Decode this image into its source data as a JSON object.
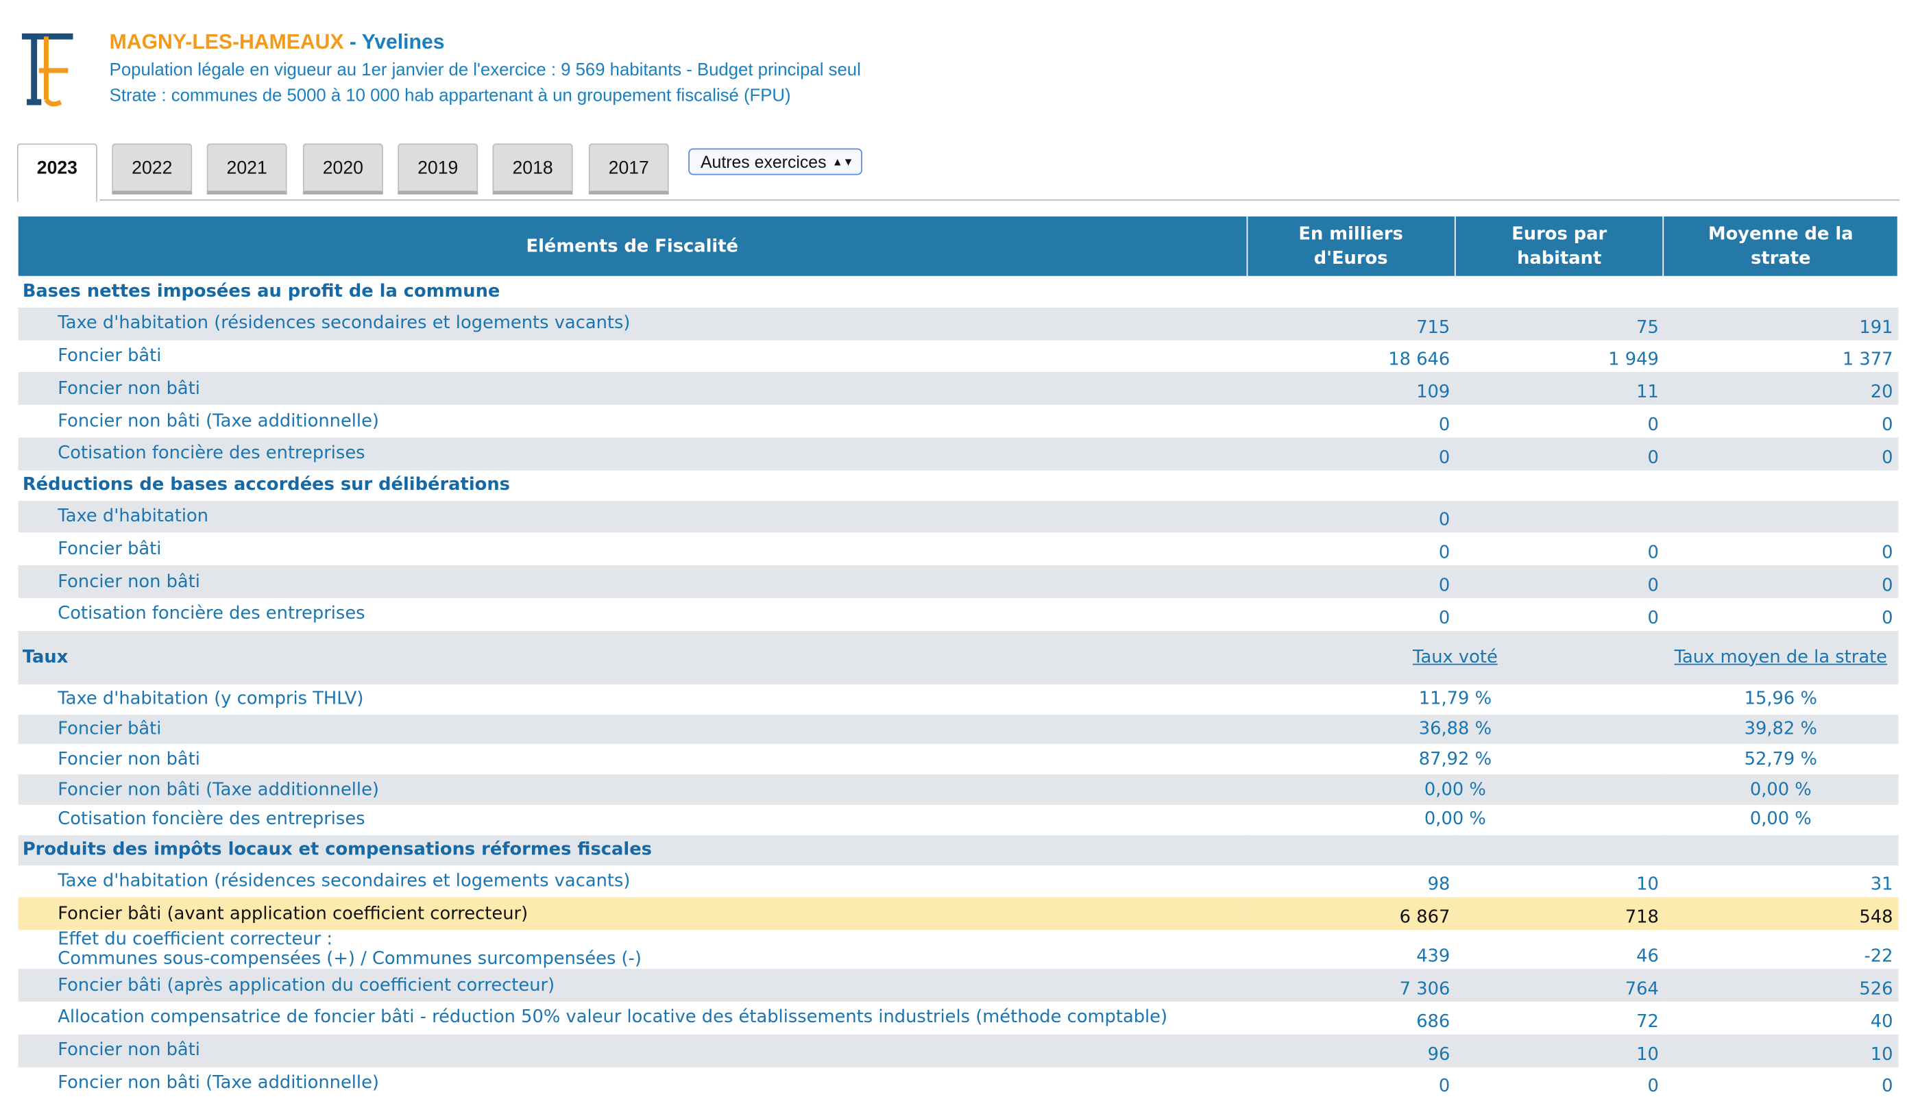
{
  "header": {
    "commune": "MAGNY-LES-HAMEAUX",
    "departement": "- Yvelines",
    "population": "Population légale en vigueur au 1er janvier de l'exercice : 9 569 habitants - Budget principal seul",
    "strate": "Strate : communes de 5000 à 10 000 hab appartenant à un groupement fiscalisé (FPU)"
  },
  "tabs": [
    "2023",
    "2022",
    "2021",
    "2020",
    "2019",
    "2018",
    "2017"
  ],
  "select": "Autres exercices",
  "table": {
    "columns": [
      "Eléments de Fiscalité",
      "En milliers d'Euros",
      "Euros par habitant",
      "Moyenne de la strate"
    ],
    "sections": [
      {
        "title": "Bases nettes imposées au profit de la commune",
        "rows": [
          {
            "label": "Taxe d'habitation (résidences secondaires et logements vacants)",
            "values": [
              "715",
              "75",
              "191"
            ]
          },
          {
            "label": "Foncier bâti",
            "values": [
              "18 646",
              "1 949",
              "1 377"
            ]
          },
          {
            "label": "Foncier non bâti",
            "values": [
              "109",
              "11",
              "20"
            ]
          },
          {
            "label": "Foncier non bâti (Taxe additionnelle)",
            "values": [
              "0",
              "0",
              "0"
            ]
          },
          {
            "label": "Cotisation foncière des entreprises",
            "values": [
              "0",
              "0",
              "0"
            ]
          }
        ]
      },
      {
        "title": "Réductions de bases accordées sur délibérations",
        "rows": [
          {
            "label": "Taxe d'habitation",
            "values": [
              "0"
            ]
          },
          {
            "label": "Foncier bâti",
            "values": [
              "0",
              "0",
              "0"
            ]
          },
          {
            "label": "Foncier non bâti",
            "values": [
              "0",
              "0",
              "0"
            ]
          },
          {
            "label": "Cotisation foncière des entreprises",
            "values": [
              "0",
              "0",
              "0"
            ]
          }
        ]
      },
      {
        "title": "Taux",
        "columns": [
          "Taux voté",
          "Taux moyen de la strate"
        ],
        "rows": [
          {
            "label": "Taxe d'habitation (y compris THLV)",
            "values": [
              "11,79 %",
              "15,96 %"
            ]
          },
          {
            "label": "Foncier bâti",
            "values": [
              "36,88 %",
              "39,82 %"
            ]
          },
          {
            "label": "Foncier non bâti",
            "values": [
              "87,92 %",
              "52,79 %"
            ]
          },
          {
            "label": "Foncier non bâti (Taxe additionnelle)",
            "values": [
              "0,00 %",
              "0,00 %"
            ]
          },
          {
            "label": "Cotisation foncière des entreprises",
            "values": [
              "0,00 %",
              "0,00 %"
            ]
          }
        ]
      },
      {
        "title": "Produits des impôts locaux et compensations réformes fiscales",
        "rows": [
          {
            "label": "Taxe d'habitation (résidences secondaires et logements vacants)",
            "values": [
              "98",
              "10",
              "31"
            ]
          },
          {
            "label": "Foncier bâti (avant application coefficient correcteur)",
            "values": [
              "6 867",
              "718",
              "548"
            ]
          },
          {
            "label": "Effet du coefficient correcteur :\nCommunes sous-compensées (+) / Communes surcompensées (-)",
            "values": [
              "439",
              "46",
              "-22"
            ]
          },
          {
            "label": "Foncier bâti (après application du coefficient correcteur)",
            "values": [
              "7 306",
              "764",
              "526"
            ]
          },
          {
            "label": "Allocation compensatrice de foncier bâti - réduction 50% valeur locative des établissements industriels (méthode comptable)",
            "values": [
              "686",
              "72",
              "40"
            ]
          },
          {
            "label": "Foncier non bâti",
            "values": [
              "96",
              "10",
              "10"
            ]
          },
          {
            "label": "Foncier non bâti (Taxe additionnelle)",
            "values": [
              "0",
              "0",
              "0"
            ]
          }
        ]
      }
    ]
  }
}
